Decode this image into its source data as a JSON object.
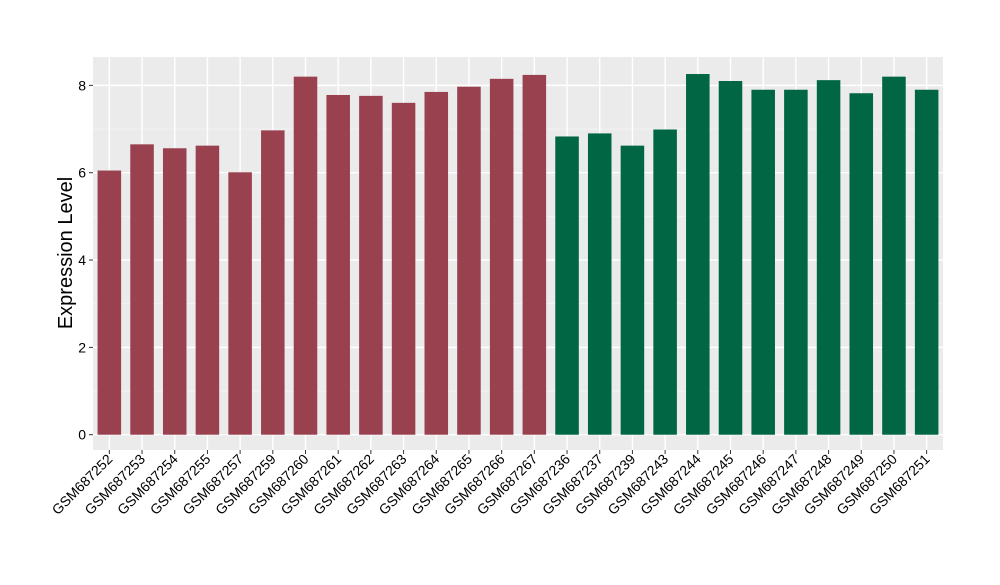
{
  "chart_data": {
    "type": "bar",
    "title": "",
    "xlabel": "",
    "ylabel": "Expression Level",
    "ylim": [
      -0.35,
      8.65
    ],
    "yticks": [
      0,
      2,
      4,
      6,
      8
    ],
    "grid": true,
    "background": "#ebebeb",
    "categories": [
      "GSM687252",
      "GSM687253",
      "GSM687254",
      "GSM687255",
      "GSM687257",
      "GSM687259",
      "GSM687260",
      "GSM687261",
      "GSM687262",
      "GSM687263",
      "GSM687264",
      "GSM687265",
      "GSM687266",
      "GSM687267",
      "GSM687236",
      "GSM687237",
      "GSM687239",
      "GSM687243",
      "GSM687244",
      "GSM687245",
      "GSM687246",
      "GSM687247",
      "GSM687248",
      "GSM687249",
      "GSM687250",
      "GSM687251"
    ],
    "values": [
      6.05,
      6.65,
      6.56,
      6.62,
      6.01,
      6.97,
      8.2,
      7.78,
      7.76,
      7.6,
      7.85,
      7.97,
      8.15,
      8.24,
      6.83,
      6.9,
      6.62,
      6.99,
      8.26,
      8.1,
      7.9,
      7.9,
      8.12,
      7.82,
      8.2,
      7.9
    ],
    "bar_colors": [
      "#9a4150",
      "#9a4150",
      "#9a4150",
      "#9a4150",
      "#9a4150",
      "#9a4150",
      "#9a4150",
      "#9a4150",
      "#9a4150",
      "#9a4150",
      "#9a4150",
      "#9a4150",
      "#9a4150",
      "#9a4150",
      "#006644",
      "#006644",
      "#006644",
      "#006644",
      "#006644",
      "#006644",
      "#006644",
      "#006644",
      "#006644",
      "#006644",
      "#006644",
      "#006644"
    ]
  }
}
